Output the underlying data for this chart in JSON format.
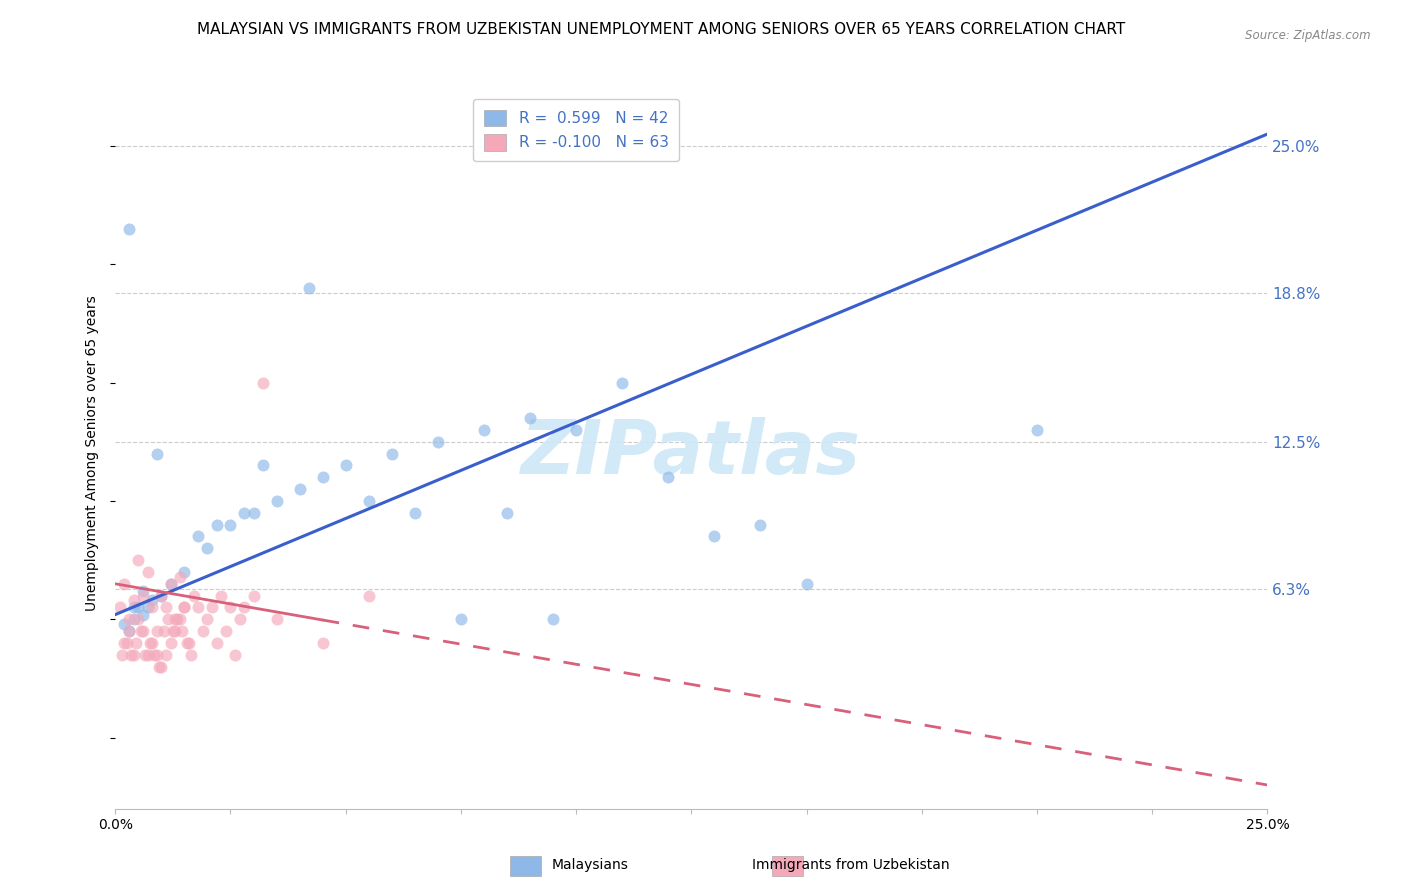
{
  "title": "MALAYSIAN VS IMMIGRANTS FROM UZBEKISTAN UNEMPLOYMENT AMONG SENIORS OVER 65 YEARS CORRELATION CHART",
  "source": "Source: ZipAtlas.com",
  "ylabel": "Unemployment Among Seniors over 65 years",
  "xlim": [
    0,
    25
  ],
  "ylim": [
    -3,
    27
  ],
  "yticks_right": [
    6.3,
    12.5,
    18.8,
    25.0
  ],
  "ytick_labels_right": [
    "6.3%",
    "12.5%",
    "18.8%",
    "25.0%"
  ],
  "legend_R_blue": "0.599",
  "legend_N_blue": "42",
  "legend_R_pink": "-0.100",
  "legend_N_pink": "63",
  "legend_label_blue": "Malaysians",
  "legend_label_pink": "Immigrants from Uzbekistan",
  "blue_scatter_x": [
    0.5,
    1.0,
    0.3,
    0.4,
    0.8,
    1.5,
    1.2,
    0.6,
    0.7,
    2.0,
    2.5,
    3.0,
    3.5,
    4.0,
    5.0,
    6.0,
    7.0,
    8.0,
    9.0,
    10.0,
    11.0,
    12.0,
    13.0,
    14.0,
    15.0,
    0.2,
    0.4,
    0.6,
    1.8,
    2.2,
    2.8,
    3.2,
    4.5,
    5.5,
    6.5,
    7.5,
    8.5,
    9.5,
    20.0,
    0.3,
    4.2,
    0.9
  ],
  "blue_scatter_y": [
    5.5,
    6.0,
    4.5,
    5.0,
    5.8,
    7.0,
    6.5,
    5.2,
    5.5,
    8.0,
    9.0,
    9.5,
    10.0,
    10.5,
    11.5,
    12.0,
    12.5,
    13.0,
    13.5,
    13.0,
    15.0,
    11.0,
    8.5,
    9.0,
    6.5,
    4.8,
    5.5,
    6.2,
    8.5,
    9.0,
    9.5,
    11.5,
    11.0,
    10.0,
    9.5,
    5.0,
    9.5,
    5.0,
    13.0,
    21.5,
    19.0,
    12.0
  ],
  "pink_scatter_x": [
    0.1,
    0.2,
    0.3,
    0.4,
    0.5,
    0.6,
    0.7,
    0.8,
    0.9,
    1.0,
    1.1,
    1.2,
    1.3,
    1.4,
    1.5,
    1.6,
    1.7,
    1.8,
    1.9,
    2.0,
    2.1,
    2.2,
    2.3,
    2.4,
    2.5,
    2.6,
    2.7,
    0.2,
    0.3,
    0.4,
    0.5,
    0.6,
    0.7,
    0.8,
    0.9,
    1.0,
    1.1,
    1.2,
    1.3,
    1.4,
    1.5,
    0.15,
    0.25,
    0.35,
    0.45,
    0.55,
    0.65,
    0.75,
    0.85,
    0.95,
    1.05,
    1.15,
    1.25,
    1.35,
    1.45,
    1.55,
    1.65,
    2.8,
    3.0,
    3.5,
    4.5,
    5.5,
    3.2
  ],
  "pink_scatter_y": [
    5.5,
    6.5,
    5.0,
    5.8,
    7.5,
    6.0,
    7.0,
    5.5,
    4.5,
    6.0,
    5.5,
    6.5,
    5.0,
    6.8,
    5.5,
    4.0,
    6.0,
    5.5,
    4.5,
    5.0,
    5.5,
    4.0,
    6.0,
    4.5,
    5.5,
    3.5,
    5.0,
    4.0,
    4.5,
    3.5,
    5.0,
    4.5,
    3.5,
    4.0,
    3.5,
    3.0,
    3.5,
    4.0,
    4.5,
    5.0,
    5.5,
    3.5,
    4.0,
    3.5,
    4.0,
    4.5,
    3.5,
    4.0,
    3.5,
    3.0,
    4.5,
    5.0,
    4.5,
    5.0,
    4.5,
    4.0,
    3.5,
    5.5,
    6.0,
    5.0,
    4.0,
    6.0,
    15.0
  ],
  "blue_line_x0": 0,
  "blue_line_x1": 25,
  "blue_line_y0": 5.2,
  "blue_line_y1": 25.5,
  "pink_line_x0": 0,
  "pink_line_x1": 25,
  "pink_line_y0": 6.5,
  "pink_line_y1": -2.0,
  "pink_solid_end_x": 4.5,
  "watermark": "ZIPatlas",
  "bg_color": "#ffffff",
  "scatter_size": 75,
  "scatter_alpha": 0.65,
  "line_blue_color": "#3A5FCD",
  "line_pink_color": "#D9607A",
  "dot_blue_color": "#8DB8E8",
  "dot_pink_color": "#F4A8BA",
  "grid_color": "#cccccc",
  "title_fontsize": 11,
  "axis_label_fontsize": 10,
  "right_tick_color": "#4472C4",
  "xtick_labels": [
    "0.0%",
    "",
    "",
    "",
    "",
    "",
    "",
    "",
    "",
    "",
    "25.0%"
  ],
  "xtick_vals": [
    0,
    2.5,
    5,
    7.5,
    10,
    12.5,
    15,
    17.5,
    20,
    22.5,
    25
  ]
}
